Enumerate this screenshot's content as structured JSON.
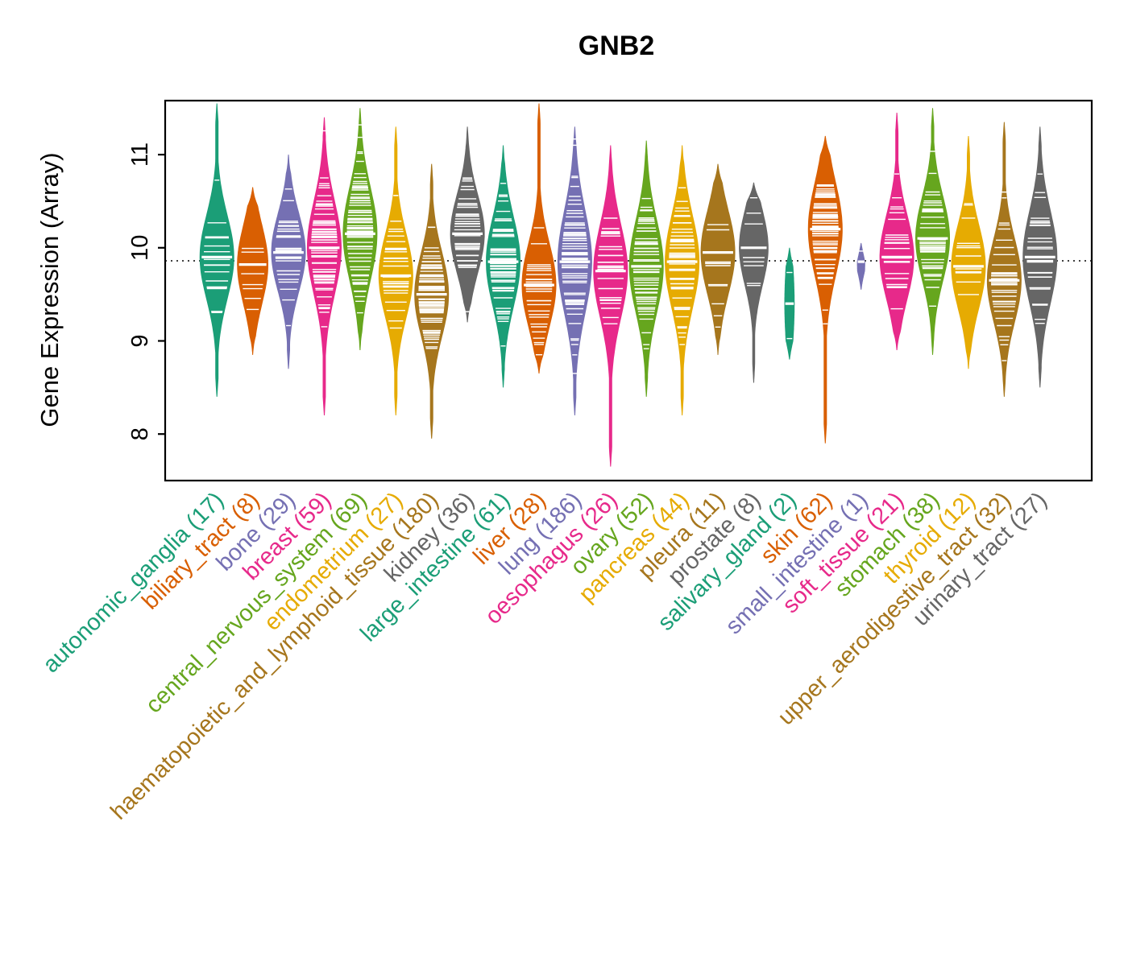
{
  "chart_data": {
    "type": "violin",
    "title": "GNB2",
    "ylabel": "Gene Expression (Array)",
    "ylim": [
      7.5,
      11.58
    ],
    "yticks": [
      8,
      9,
      10,
      11
    ],
    "reference_line": 9.86,
    "grid": false,
    "legend": "none",
    "palette": [
      "#1B9E77",
      "#D95F02",
      "#7570B3",
      "#E7298A",
      "#66A61E",
      "#E6AB02",
      "#A6761D",
      "#666666"
    ],
    "categories": [
      {
        "tissue": "autonomic_ganglia",
        "n": 17,
        "label": "autonomic_ganglia (17)",
        "color": "#1B9E77",
        "min": 8.4,
        "max": 11.55,
        "median": 9.9,
        "sigma": 0.45,
        "w": 1
      },
      {
        "tissue": "biliary_tract",
        "n": 8,
        "label": "biliary_tract (8)",
        "color": "#D95F02",
        "min": 8.85,
        "max": 10.65,
        "median": 9.82,
        "sigma": 0.42,
        "w": 0.9
      },
      {
        "tissue": "bone",
        "n": 29,
        "label": "bone (29)",
        "color": "#7570B3",
        "min": 8.7,
        "max": 11.0,
        "median": 9.95,
        "sigma": 0.42,
        "w": 1
      },
      {
        "tissue": "breast",
        "n": 59,
        "label": "breast (59)",
        "color": "#E7298A",
        "min": 8.2,
        "max": 11.4,
        "median": 10.0,
        "sigma": 0.5,
        "w": 1
      },
      {
        "tissue": "central_nervous_system",
        "n": 69,
        "label": "central_nervous_system (69)",
        "color": "#66A61E",
        "min": 8.9,
        "max": 11.5,
        "median": 10.15,
        "sigma": 0.5,
        "w": 1
      },
      {
        "tissue": "endometrium",
        "n": 27,
        "label": "endometrium (27)",
        "color": "#E6AB02",
        "min": 8.2,
        "max": 11.3,
        "median": 9.7,
        "sigma": 0.45,
        "w": 1
      },
      {
        "tissue": "haematopoietic_and_lymphoid_tissue",
        "n": 180,
        "label": "haematopoietic_and_lymphoid_tissue (180)",
        "color": "#A6761D",
        "min": 7.95,
        "max": 10.9,
        "median": 9.5,
        "sigma": 0.45,
        "w": 1
      },
      {
        "tissue": "kidney",
        "n": 36,
        "label": "kidney (36)",
        "color": "#666666",
        "min": 9.2,
        "max": 11.3,
        "median": 10.15,
        "sigma": 0.42,
        "w": 1
      },
      {
        "tissue": "large_intestine",
        "n": 61,
        "label": "large_intestine (61)",
        "color": "#1B9E77",
        "min": 8.5,
        "max": 11.1,
        "median": 9.85,
        "sigma": 0.48,
        "w": 1
      },
      {
        "tissue": "liver",
        "n": 28,
        "label": "liver (28)",
        "color": "#D95F02",
        "min": 8.65,
        "max": 11.55,
        "median": 9.6,
        "sigma": 0.45,
        "w": 1
      },
      {
        "tissue": "lung",
        "n": 186,
        "label": "lung (186)",
        "color": "#7570B3",
        "min": 8.2,
        "max": 11.3,
        "median": 9.85,
        "sigma": 0.55,
        "w": 1
      },
      {
        "tissue": "oesophagus",
        "n": 26,
        "label": "oesophagus (26)",
        "color": "#E7298A",
        "min": 7.65,
        "max": 11.1,
        "median": 9.75,
        "sigma": 0.5,
        "w": 1
      },
      {
        "tissue": "ovary",
        "n": 52,
        "label": "ovary (52)",
        "color": "#66A61E",
        "min": 8.4,
        "max": 11.15,
        "median": 9.8,
        "sigma": 0.5,
        "w": 1
      },
      {
        "tissue": "pancreas",
        "n": 44,
        "label": "pancreas (44)",
        "color": "#E6AB02",
        "min": 8.2,
        "max": 11.1,
        "median": 9.85,
        "sigma": 0.5,
        "w": 1
      },
      {
        "tissue": "pleura",
        "n": 11,
        "label": "pleura (11)",
        "color": "#A6761D",
        "min": 8.85,
        "max": 10.9,
        "median": 9.95,
        "sigma": 0.45,
        "w": 1
      },
      {
        "tissue": "prostate",
        "n": 8,
        "label": "prostate (8)",
        "color": "#666666",
        "min": 8.55,
        "max": 10.7,
        "median": 10.0,
        "sigma": 0.4,
        "w": 0.85
      },
      {
        "tissue": "salivary_gland",
        "n": 2,
        "label": "salivary_gland (2)",
        "color": "#1B9E77",
        "min": 8.8,
        "max": 10.0,
        "median": 9.4,
        "sigma": 0.5,
        "w": 0.28
      },
      {
        "tissue": "skin",
        "n": 62,
        "label": "skin (62)",
        "color": "#D95F02",
        "min": 7.9,
        "max": 11.2,
        "median": 10.2,
        "sigma": 0.5,
        "w": 1
      },
      {
        "tissue": "small_intestine",
        "n": 1,
        "label": "small_intestine (1)",
        "color": "#7570B3",
        "min": 9.55,
        "max": 10.05,
        "median": 9.85,
        "sigma": 0.3,
        "w": 0.22
      },
      {
        "tissue": "soft_tissue",
        "n": 21,
        "label": "soft_tissue (21)",
        "color": "#E7298A",
        "min": 8.9,
        "max": 11.45,
        "median": 9.9,
        "sigma": 0.45,
        "w": 1
      },
      {
        "tissue": "stomach",
        "n": 38,
        "label": "stomach (38)",
        "color": "#66A61E",
        "min": 8.85,
        "max": 11.5,
        "median": 10.1,
        "sigma": 0.45,
        "w": 1
      },
      {
        "tissue": "thyroid",
        "n": 12,
        "label": "thyroid (12)",
        "color": "#E6AB02",
        "min": 8.7,
        "max": 11.2,
        "median": 9.8,
        "sigma": 0.45,
        "w": 1
      },
      {
        "tissue": "upper_aerodigestive_tract",
        "n": 32,
        "label": "upper_aerodigestive_tract (32)",
        "color": "#A6761D",
        "min": 8.4,
        "max": 11.35,
        "median": 9.65,
        "sigma": 0.45,
        "w": 1
      },
      {
        "tissue": "urinary_tract",
        "n": 27,
        "label": "urinary_tract (27)",
        "color": "#666666",
        "min": 8.5,
        "max": 11.3,
        "median": 9.9,
        "sigma": 0.5,
        "w": 1
      }
    ]
  }
}
